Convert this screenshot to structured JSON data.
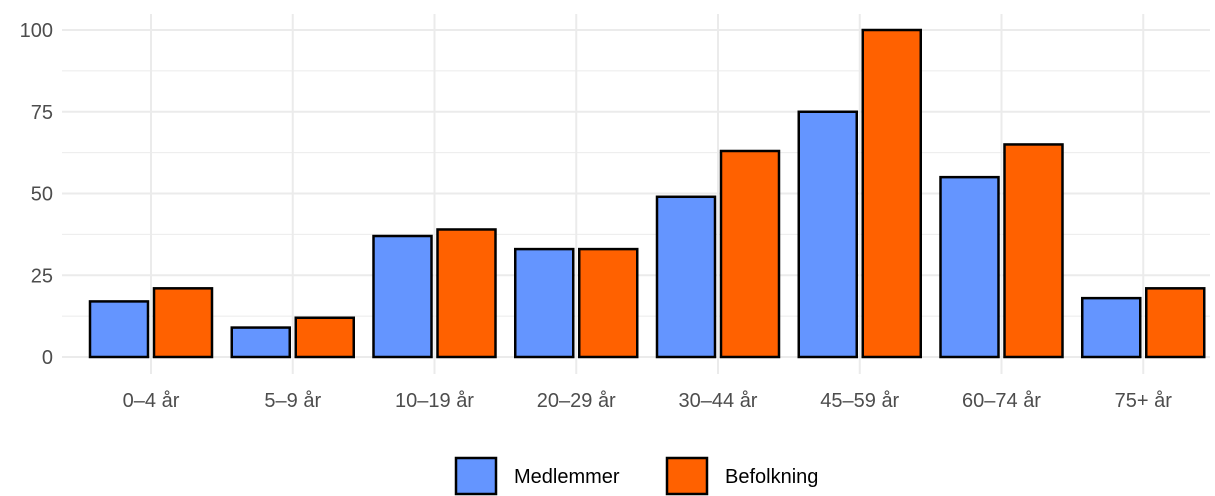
{
  "chart_data": {
    "type": "bar",
    "categories": [
      "0–4 år",
      "5–9 år",
      "10–19 år",
      "20–29 år",
      "30–44 år",
      "45–59 år",
      "60–74 år",
      "75+ år"
    ],
    "series": [
      {
        "name": "Medlemmer",
        "color": "#6495ff",
        "values": [
          17,
          9,
          37,
          33,
          49,
          75,
          55,
          18
        ]
      },
      {
        "name": "Befolkning",
        "color": "#ff6100",
        "values": [
          21,
          12,
          39,
          33,
          63,
          100,
          65,
          21
        ]
      }
    ],
    "ylim": [
      0,
      100
    ],
    "yticks": [
      0,
      25,
      50,
      75,
      100
    ],
    "title": "",
    "xlabel": "",
    "ylabel": "",
    "grid": true,
    "legend_position": "bottom",
    "bar_outline_color": "#000000",
    "gridline_color": "#ebebeb"
  }
}
